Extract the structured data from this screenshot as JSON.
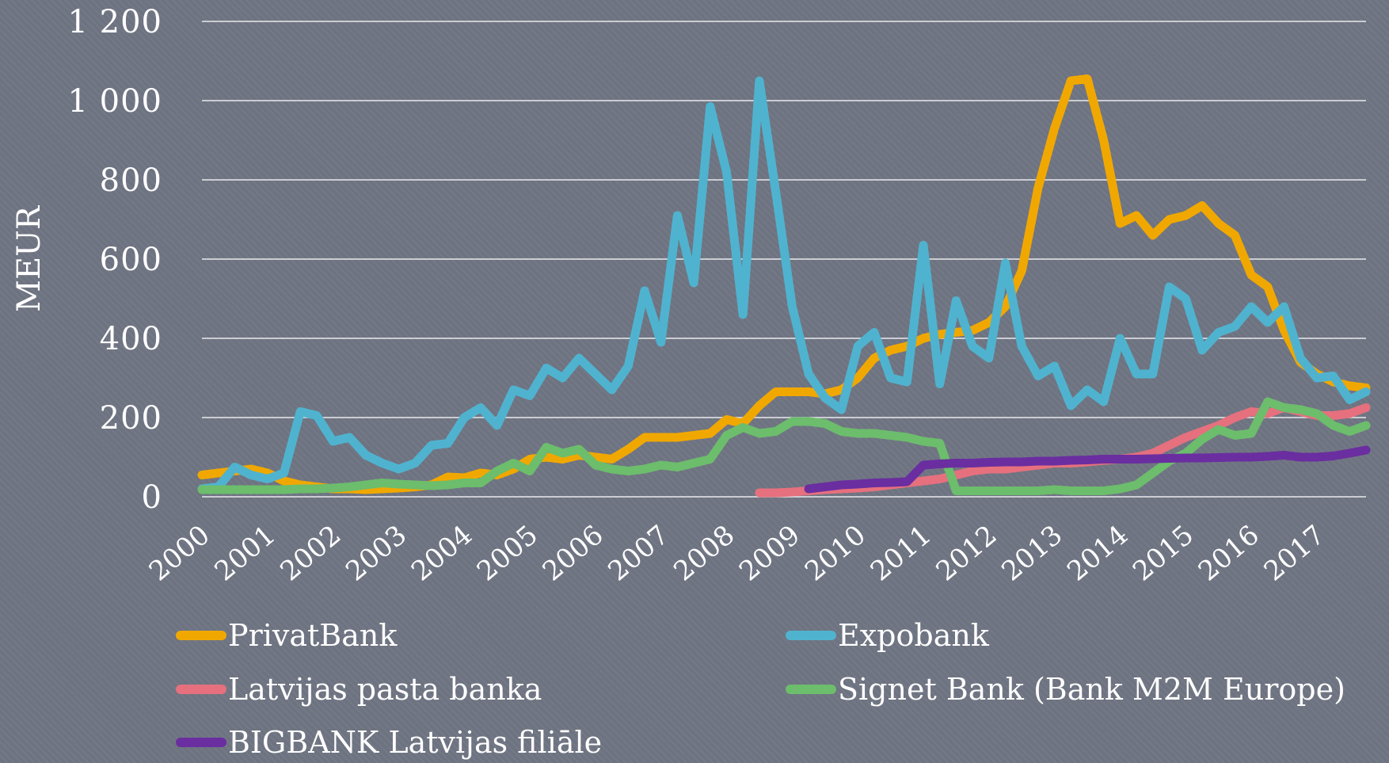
{
  "chart_data": {
    "type": "line",
    "ylabel": "MEUR",
    "ylim": [
      0,
      1200
    ],
    "yticks": [
      0,
      200,
      400,
      600,
      800,
      1000,
      1200
    ],
    "ytick_labels": [
      "0",
      "200",
      "400",
      "600",
      "800",
      "1 000",
      "1 200"
    ],
    "xlim": [
      2000,
      2017.75
    ],
    "xticks": [
      2000,
      2001,
      2002,
      2003,
      2004,
      2005,
      2006,
      2007,
      2008,
      2009,
      2010,
      2011,
      2012,
      2013,
      2014,
      2015,
      2016,
      2017
    ],
    "xtick_labels": [
      "2000",
      "2001",
      "2002",
      "2003",
      "2004",
      "2005",
      "2006",
      "2007",
      "2008",
      "2009",
      "2010",
      "2011",
      "2012",
      "2013",
      "2014",
      "2015",
      "2016",
      "2017"
    ],
    "grid": true,
    "legend_position": "bottom",
    "series": [
      {
        "name": "PrivatBank",
        "color": "#f0a800",
        "x": [
          2000.0,
          2000.25,
          2000.5,
          2000.75,
          2001.0,
          2001.25,
          2001.5,
          2001.75,
          2002.0,
          2002.25,
          2002.5,
          2002.75,
          2003.0,
          2003.25,
          2003.5,
          2003.75,
          2004.0,
          2004.25,
          2004.5,
          2004.75,
          2005.0,
          2005.25,
          2005.5,
          2005.75,
          2006.0,
          2006.25,
          2006.5,
          2006.75,
          2007.0,
          2007.25,
          2007.5,
          2007.75,
          2008.0,
          2008.25,
          2008.5,
          2008.75,
          2009.0,
          2009.25,
          2009.5,
          2009.75,
          2010.0,
          2010.25,
          2010.5,
          2010.75,
          2011.0,
          2011.25,
          2011.5,
          2011.75,
          2012.0,
          2012.25,
          2012.5,
          2012.75,
          2013.0,
          2013.25,
          2013.5,
          2013.75,
          2014.0,
          2014.25,
          2014.5,
          2014.75,
          2015.0,
          2015.25,
          2015.5,
          2015.75,
          2016.0,
          2016.25,
          2016.5,
          2016.75,
          2017.0,
          2017.25,
          2017.5,
          2017.75
        ],
        "values": [
          55,
          60,
          65,
          70,
          60,
          40,
          30,
          25,
          20,
          20,
          18,
          20,
          22,
          25,
          30,
          50,
          48,
          60,
          55,
          70,
          95,
          100,
          95,
          105,
          100,
          95,
          120,
          150,
          150,
          150,
          155,
          160,
          195,
          185,
          230,
          265,
          265,
          265,
          260,
          270,
          300,
          350,
          370,
          380,
          400,
          410,
          415,
          420,
          440,
          480,
          570,
          780,
          930,
          1050,
          1055,
          900,
          690,
          710,
          660,
          700,
          710,
          735,
          690,
          660,
          560,
          530,
          420,
          340,
          310,
          290,
          280,
          275
        ]
      },
      {
        "name": "Expobank",
        "color": "#4fb3cf",
        "x": [
          2000.0,
          2000.25,
          2000.5,
          2000.75,
          2001.0,
          2001.25,
          2001.5,
          2001.75,
          2002.0,
          2002.25,
          2002.5,
          2002.75,
          2003.0,
          2003.25,
          2003.5,
          2003.75,
          2004.0,
          2004.25,
          2004.5,
          2004.75,
          2005.0,
          2005.25,
          2005.5,
          2005.75,
          2006.0,
          2006.25,
          2006.5,
          2006.75,
          2007.0,
          2007.25,
          2007.5,
          2007.75,
          2008.0,
          2008.25,
          2008.5,
          2008.75,
          2009.0,
          2009.25,
          2009.5,
          2009.75,
          2010.0,
          2010.25,
          2010.5,
          2010.75,
          2011.0,
          2011.25,
          2011.5,
          2011.75,
          2012.0,
          2012.25,
          2012.5,
          2012.75,
          2013.0,
          2013.25,
          2013.5,
          2013.75,
          2014.0,
          2014.25,
          2014.5,
          2014.75,
          2015.0,
          2015.25,
          2015.5,
          2015.75,
          2016.0,
          2016.25,
          2016.5,
          2016.75,
          2017.0,
          2017.25,
          2017.5,
          2017.75
        ],
        "values": [
          20,
          25,
          75,
          55,
          45,
          60,
          215,
          205,
          140,
          150,
          105,
          85,
          70,
          85,
          130,
          135,
          200,
          225,
          180,
          270,
          255,
          325,
          300,
          350,
          310,
          270,
          330,
          520,
          390,
          710,
          540,
          985,
          820,
          460,
          1050,
          770,
          480,
          310,
          250,
          220,
          380,
          415,
          300,
          290,
          635,
          285,
          495,
          380,
          350,
          590,
          380,
          305,
          330,
          230,
          270,
          240,
          400,
          310,
          310,
          530,
          500,
          370,
          415,
          430,
          480,
          440,
          480,
          350,
          300,
          305,
          245,
          265
        ]
      },
      {
        "name": "Latvijas pasta banka",
        "color": "#e6707e",
        "x": [
          2008.5,
          2008.75,
          2009.0,
          2009.25,
          2009.5,
          2009.75,
          2010.0,
          2010.25,
          2010.5,
          2010.75,
          2011.0,
          2011.25,
          2011.5,
          2011.75,
          2012.0,
          2012.25,
          2012.5,
          2012.75,
          2013.0,
          2013.25,
          2013.5,
          2013.75,
          2014.0,
          2014.25,
          2014.5,
          2014.75,
          2015.0,
          2015.25,
          2015.5,
          2015.75,
          2016.0,
          2016.25,
          2016.5,
          2016.75,
          2017.0,
          2017.25,
          2017.5,
          2017.75
        ],
        "values": [
          10,
          10,
          12,
          15,
          18,
          20,
          22,
          25,
          30,
          35,
          40,
          45,
          55,
          65,
          70,
          70,
          75,
          80,
          85,
          85,
          88,
          92,
          95,
          100,
          110,
          130,
          150,
          165,
          180,
          200,
          215,
          210,
          225,
          215,
          205,
          205,
          210,
          225
        ]
      },
      {
        "name": "Signet Bank (Bank M2M Europe)",
        "color": "#6cbd6c",
        "x": [
          2000.0,
          2000.25,
          2000.5,
          2000.75,
          2001.0,
          2001.25,
          2001.5,
          2001.75,
          2002.0,
          2002.25,
          2002.5,
          2002.75,
          2003.0,
          2003.25,
          2003.5,
          2003.75,
          2004.0,
          2004.25,
          2004.5,
          2004.75,
          2005.0,
          2005.25,
          2005.5,
          2005.75,
          2006.0,
          2006.25,
          2006.5,
          2006.75,
          2007.0,
          2007.25,
          2007.5,
          2007.75,
          2008.0,
          2008.25,
          2008.5,
          2008.75,
          2009.0,
          2009.25,
          2009.5,
          2009.75,
          2010.0,
          2010.25,
          2010.5,
          2010.75,
          2011.0,
          2011.25,
          2011.5,
          2011.75,
          2012.0,
          2012.25,
          2012.5,
          2012.75,
          2013.0,
          2013.25,
          2013.5,
          2013.75,
          2014.0,
          2014.25,
          2014.5,
          2014.75,
          2015.0,
          2015.25,
          2015.5,
          2015.75,
          2016.0,
          2016.25,
          2016.5,
          2016.75,
          2017.0,
          2017.25,
          2017.5,
          2017.75
        ],
        "values": [
          18,
          18,
          18,
          18,
          18,
          18,
          20,
          20,
          22,
          25,
          30,
          35,
          32,
          30,
          28,
          30,
          35,
          35,
          65,
          85,
          65,
          125,
          110,
          120,
          80,
          70,
          65,
          70,
          80,
          75,
          85,
          95,
          155,
          175,
          160,
          165,
          190,
          190,
          185,
          165,
          160,
          160,
          155,
          150,
          140,
          135,
          15,
          15,
          15,
          15,
          15,
          15,
          18,
          15,
          15,
          15,
          20,
          30,
          60,
          90,
          110,
          145,
          170,
          155,
          160,
          240,
          225,
          220,
          210,
          180,
          165,
          180
        ]
      },
      {
        "name": "BIGBANK Latvijas filiāle",
        "color": "#6a2ea0",
        "x": [
          2009.25,
          2009.5,
          2009.75,
          2010.0,
          2010.25,
          2010.5,
          2010.75,
          2011.0,
          2011.25,
          2011.5,
          2011.75,
          2012.0,
          2012.25,
          2012.5,
          2012.75,
          2013.0,
          2013.25,
          2013.5,
          2013.75,
          2014.0,
          2014.25,
          2014.5,
          2014.75,
          2015.0,
          2015.25,
          2015.5,
          2015.75,
          2016.0,
          2016.25,
          2016.5,
          2016.75,
          2017.0,
          2017.25,
          2017.5,
          2017.75
        ],
        "values": [
          20,
          25,
          30,
          32,
          35,
          36,
          38,
          80,
          83,
          85,
          85,
          87,
          88,
          88,
          90,
          90,
          92,
          93,
          95,
          95,
          95,
          96,
          97,
          98,
          98,
          99,
          100,
          100,
          102,
          105,
          100,
          100,
          103,
          110,
          118
        ]
      }
    ]
  }
}
